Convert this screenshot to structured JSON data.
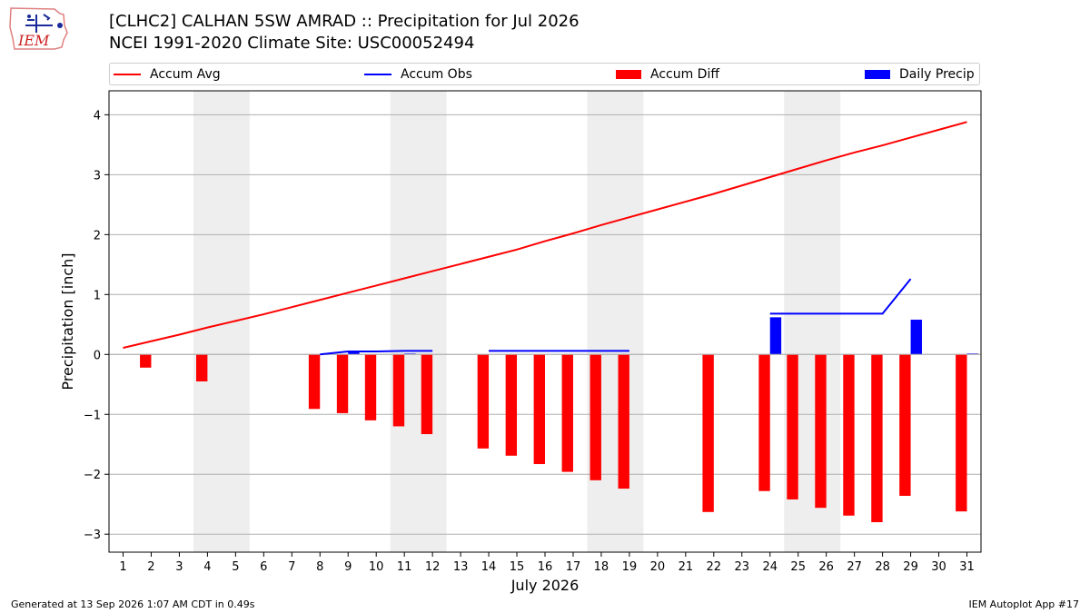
{
  "header": {
    "title_line1": "[CLHC2] CALHAN 5SW AMRAD :: Precipitation for Jul 2026",
    "title_line2": "NCEI 1991-2020 Climate Site: USC00052494",
    "logo_text": "IEM"
  },
  "legend": {
    "items": [
      {
        "label": "Accum Avg",
        "kind": "line",
        "color": "#ff0000"
      },
      {
        "label": "Accum Obs",
        "kind": "line",
        "color": "#0000ff"
      },
      {
        "label": "Accum Diff",
        "kind": "patch",
        "color": "#ff0000"
      },
      {
        "label": "Daily Precip",
        "kind": "patch",
        "color": "#0000ff"
      }
    ]
  },
  "footer": {
    "left": "Generated at 13 Sep 2026 1:07 AM CDT in 0.49s",
    "right": "IEM Autoplot App #17"
  },
  "chart_data": {
    "type": "bar",
    "title": "[CLHC2] CALHAN 5SW AMRAD :: Precipitation for Jul 2026",
    "xlabel": "July 2026",
    "ylabel": "Precipitation [inch]",
    "xlim": [
      0.5,
      31.5
    ],
    "ylim": [
      -3.3,
      4.4
    ],
    "yticks": [
      -3,
      -2,
      -1,
      0,
      1,
      2,
      3,
      4
    ],
    "ytick_labels": [
      "−3",
      "−2",
      "−1",
      "0",
      "1",
      "2",
      "3",
      "4"
    ],
    "days": [
      1,
      2,
      3,
      4,
      5,
      6,
      7,
      8,
      9,
      10,
      11,
      12,
      13,
      14,
      15,
      16,
      17,
      18,
      19,
      20,
      21,
      22,
      23,
      24,
      25,
      26,
      27,
      28,
      29,
      30,
      31
    ],
    "grid": "horizontal",
    "weekend_bands": [
      [
        3.5,
        5.5
      ],
      [
        10.5,
        12.5
      ],
      [
        17.5,
        19.5
      ],
      [
        24.5,
        26.5
      ]
    ],
    "series": [
      {
        "name": "Accum Avg",
        "kind": "line",
        "color": "#ff0000",
        "x": [
          1,
          2,
          3,
          4,
          5,
          6,
          7,
          8,
          9,
          10,
          11,
          12,
          13,
          14,
          15,
          16,
          17,
          18,
          19,
          20,
          21,
          22,
          23,
          24,
          25,
          26,
          27,
          28,
          29,
          30,
          31
        ],
        "values": [
          0.11,
          0.22,
          0.33,
          0.45,
          0.56,
          0.67,
          0.79,
          0.91,
          1.03,
          1.15,
          1.27,
          1.39,
          1.51,
          1.63,
          1.75,
          1.89,
          2.02,
          2.16,
          2.29,
          2.42,
          2.55,
          2.68,
          2.82,
          2.96,
          3.1,
          3.24,
          3.37,
          3.49,
          3.62,
          3.75,
          3.88
        ]
      },
      {
        "name": "Accum Obs",
        "kind": "line",
        "color": "#0000ff",
        "segments": [
          {
            "x": [
              8,
              9,
              10,
              11,
              12
            ],
            "values": [
              0.0,
              0.05,
              0.05,
              0.06,
              0.06
            ]
          },
          {
            "x": [
              14,
              15,
              16,
              17,
              18,
              19
            ],
            "values": [
              0.06,
              0.06,
              0.06,
              0.06,
              0.06,
              0.06
            ]
          },
          {
            "x": [
              24,
              25,
              26,
              27,
              28,
              29
            ],
            "values": [
              0.68,
              0.68,
              0.68,
              0.68,
              0.68,
              1.26
            ]
          }
        ]
      },
      {
        "name": "Accum Diff",
        "kind": "bar",
        "color": "#ff0000",
        "x": [
          2,
          4,
          8,
          9,
          10,
          11,
          12,
          14,
          15,
          16,
          17,
          18,
          19,
          22,
          24,
          25,
          26,
          27,
          28,
          29,
          31
        ],
        "values": [
          -0.22,
          -0.45,
          -0.91,
          -0.98,
          -1.1,
          -1.2,
          -1.33,
          -1.57,
          -1.69,
          -1.83,
          -1.96,
          -2.1,
          -2.24,
          -2.63,
          -2.28,
          -2.42,
          -2.56,
          -2.69,
          -2.8,
          -2.36,
          -2.62
        ]
      },
      {
        "name": "Daily Precip",
        "kind": "bar",
        "color": "#0000ff",
        "x": [
          9,
          11,
          24,
          29,
          31
        ],
        "values": [
          0.05,
          0.01,
          0.62,
          0.58,
          0.01
        ]
      }
    ]
  }
}
